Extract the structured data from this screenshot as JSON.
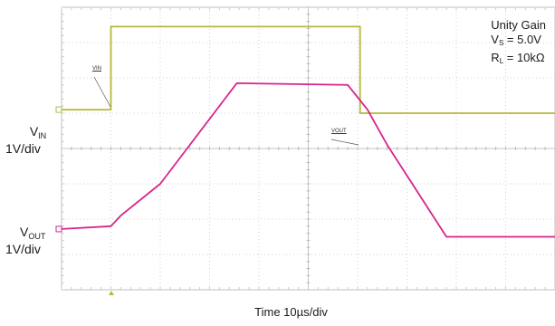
{
  "chart_data": {
    "type": "line",
    "xlabel": "Time 10µs/div",
    "x_divisions": 10,
    "y_divisions": 8,
    "grid": true,
    "legend_placement": "top-right",
    "annotations": {
      "line1": "Unity Gain",
      "vs_prefix": "V",
      "vs_sub": "S",
      "vs_value": " = 5.0V",
      "rl_prefix": "R",
      "rl_sub": "L",
      "rl_value": " = 10kΩ"
    },
    "channel_labels": {
      "vin_main": "V",
      "vin_sub": "IN",
      "vin_scale": "1V/div",
      "vout_main": "V",
      "vout_sub": "OUT",
      "vout_scale": "1V/div"
    },
    "trace_tags": {
      "vin": "VIN",
      "vout": "VOUT"
    },
    "series": [
      {
        "name": "VIN",
        "color": "#b5b83a",
        "x_div": [
          0,
          1.0,
          1.0,
          6.05,
          6.05,
          10
        ],
        "y_div": [
          5.1,
          5.1,
          7.45,
          7.45,
          5.0,
          5.0
        ]
      },
      {
        "name": "VOUT",
        "color": "#d6248e",
        "x_div": [
          0,
          1.0,
          1.2,
          2.0,
          3.55,
          5.8,
          6.2,
          6.6,
          7.8,
          10
        ],
        "y_div": [
          1.72,
          1.8,
          2.1,
          3.0,
          5.85,
          5.8,
          5.1,
          4.1,
          1.5,
          1.5
        ]
      }
    ]
  }
}
